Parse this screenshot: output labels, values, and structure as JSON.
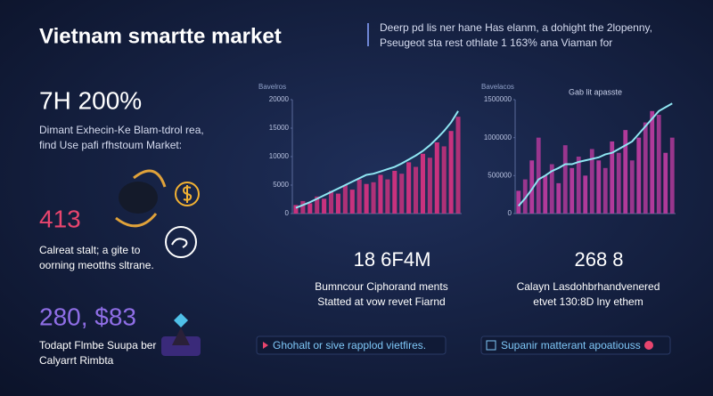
{
  "header": {
    "title": "Vietnam smartte market",
    "description": [
      "Deerp pd lis ner hane Has elanm, a dohight the 2lopenny,",
      "Pseugeot sta rest othlate 1 163% ana Viaman for"
    ]
  },
  "stats": [
    {
      "value": "7H 200%",
      "lines": [
        "Dimant Exhecin-Ke Blam-tdrol rea,",
        "find Use pafi rfhstoum Market:"
      ]
    },
    {
      "value": "413",
      "lines": [
        "Calreat stalt; a gite to",
        "oorning meotths sltrane."
      ]
    },
    {
      "value": "280, $83",
      "lines": [
        "Todapt Flmbe Suupa ber",
        "Calyarrt Rimbta"
      ]
    }
  ],
  "highlights": [
    {
      "value": "18 6F4M",
      "lines": [
        "Bumncour Ciphorand ments",
        "Statted at vow revet Fiarnd"
      ]
    },
    {
      "value": "268 8",
      "lines": [
        "Calayn Lasdohbrhandvenered",
        "etvet 130:8D lny ethem"
      ]
    }
  ],
  "callouts": [
    "Ghohalt or sive rapplod vietfires.",
    "Supanir matterant apoatiouss"
  ],
  "chart_data": [
    {
      "type": "bar",
      "title": "Bavelros",
      "categories": [
        null,
        null,
        null,
        null,
        null,
        null,
        null,
        null,
        null,
        null,
        null,
        null,
        null,
        null,
        null,
        null,
        null,
        null,
        null,
        null,
        null,
        null,
        null,
        null
      ],
      "series": [
        {
          "type": "bar",
          "color": "#c8327e",
          "values": [
            1500,
            2200,
            1800,
            3000,
            2600,
            4000,
            3500,
            5000,
            4200,
            6000,
            5200,
            5500,
            6800,
            6000,
            7500,
            7000,
            9000,
            8200,
            10500,
            9800,
            12500,
            11800,
            14500,
            17000
          ]
        },
        {
          "type": "line",
          "color": "#8fe6f2",
          "values": [
            1000,
            1500,
            2000,
            2600,
            3200,
            3800,
            4400,
            5000,
            5600,
            6200,
            6800,
            7000,
            7400,
            7800,
            8200,
            8800,
            9500,
            10200,
            11000,
            12000,
            13200,
            14500,
            16000,
            18000
          ]
        }
      ],
      "ylim": [
        0,
        20000
      ],
      "yticks": [
        0,
        5000,
        10000,
        15000,
        20000
      ]
    },
    {
      "type": "bar",
      "title": "Bavelacos",
      "annotation": "Gab lit apasste",
      "categories": [
        null,
        null,
        null,
        null,
        null,
        null,
        null,
        null,
        null,
        null,
        null,
        null,
        null,
        null,
        null,
        null,
        null,
        null,
        null,
        null,
        null,
        null,
        null,
        null
      ],
      "series": [
        {
          "type": "bar",
          "color": "#b03a9a",
          "values": [
            300000,
            450000,
            700000,
            1000000,
            500000,
            650000,
            400000,
            900000,
            600000,
            750000,
            500000,
            850000,
            700000,
            600000,
            950000,
            800000,
            1100000,
            700000,
            1000000,
            1200000,
            1350000,
            1300000,
            800000,
            1000000
          ]
        },
        {
          "type": "line",
          "color": "#8fe6f2",
          "values": [
            100000,
            200000,
            320000,
            450000,
            500000,
            560000,
            600000,
            650000,
            650000,
            680000,
            700000,
            720000,
            740000,
            780000,
            800000,
            850000,
            900000,
            950000,
            1050000,
            1150000,
            1250000,
            1350000,
            1400000,
            1450000
          ]
        }
      ],
      "ylim": [
        0,
        1500000
      ],
      "yticks": [
        0,
        500000,
        1000000,
        1500000
      ]
    }
  ]
}
